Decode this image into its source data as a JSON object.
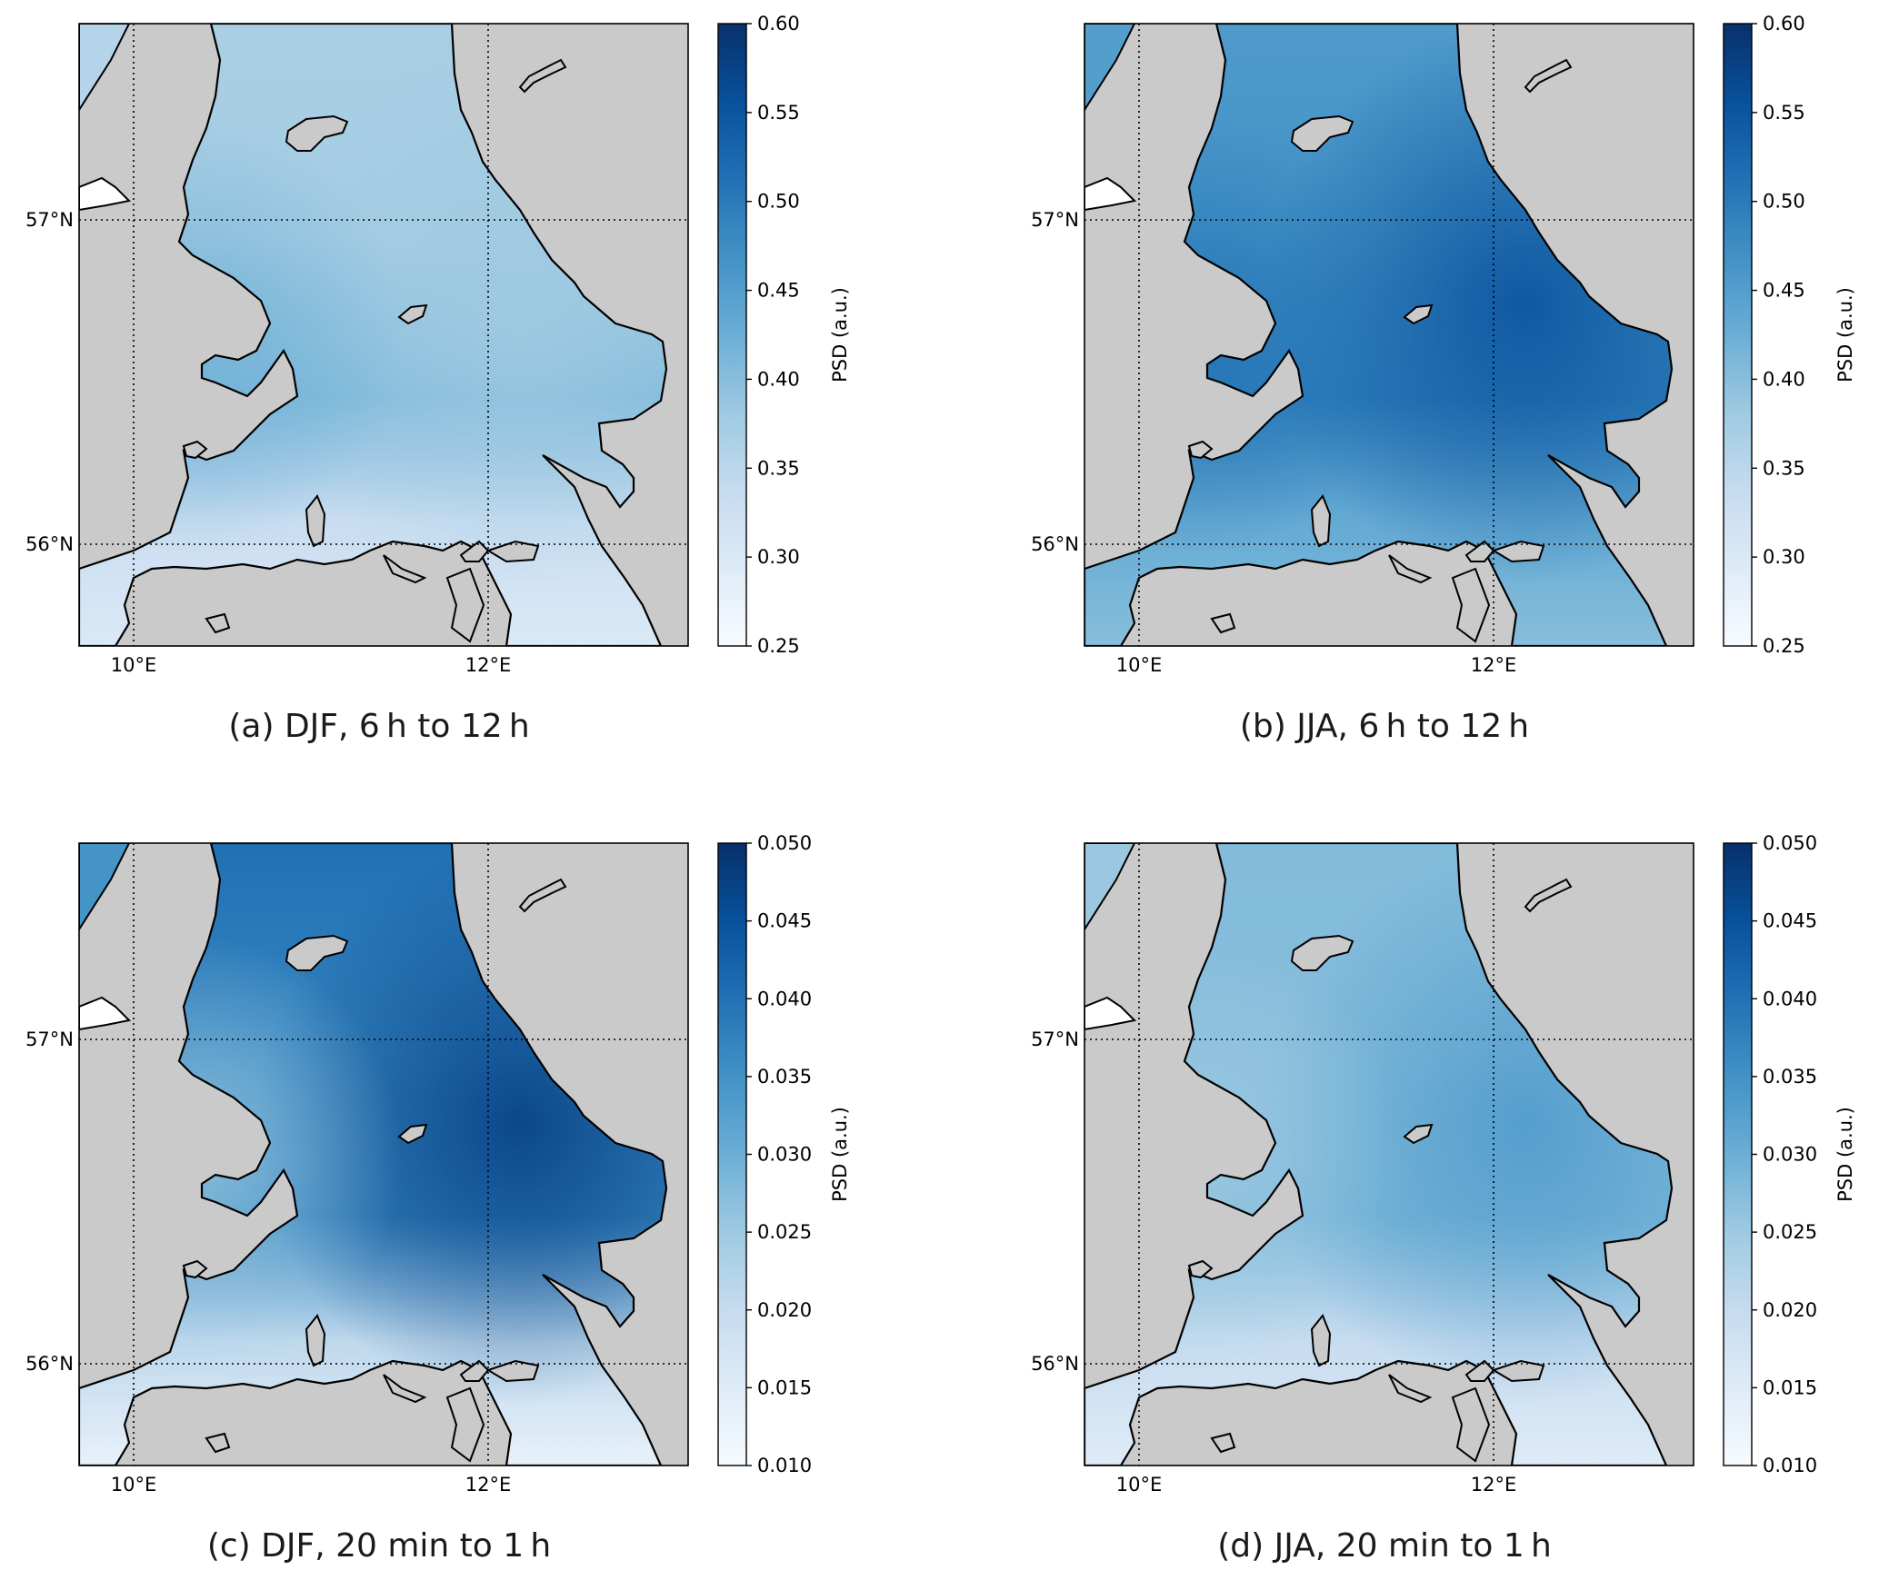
{
  "colors": {
    "land": "#cacaca",
    "coast": "#000000",
    "cmap": [
      "#f7fbff",
      "#deebf7",
      "#c6dbef",
      "#9ecae1",
      "#6baed6",
      "#4292c6",
      "#2171b5",
      "#08519c",
      "#08306b"
    ]
  },
  "axes": {
    "lon_ticks": [
      "10°E",
      "12°E"
    ],
    "lat_ticks": [
      "57°N",
      "56°N"
    ]
  },
  "panels": [
    {
      "id": "a",
      "caption": "(a) DJF, 6 h to 12 h",
      "colorbar": {
        "label": "PSD (a.u.)",
        "min": 0.25,
        "max": 0.6,
        "ticks": [
          "0.25",
          "0.30",
          "0.35",
          "0.40",
          "0.45",
          "0.50",
          "0.55",
          "0.60"
        ]
      },
      "field": {
        "base": 0.38,
        "ne": -0.02,
        "east_coast": 0.0,
        "south": -0.08,
        "west": 0.04,
        "kattegat_south": 0.05
      }
    },
    {
      "id": "b",
      "caption": "(b) JJA, 6 h to 12 h",
      "colorbar": {
        "label": "PSD (a.u.)",
        "min": 0.25,
        "max": 0.6,
        "ticks": [
          "0.25",
          "0.30",
          "0.35",
          "0.40",
          "0.45",
          "0.50",
          "0.55",
          "0.60"
        ]
      },
      "field": {
        "base": 0.48,
        "ne": -0.04,
        "east_coast": 0.07,
        "south": -0.08,
        "west": 0.03,
        "kattegat_south": 0.02
      }
    },
    {
      "id": "c",
      "caption": "(c) DJF, 20 min to 1 h",
      "colorbar": {
        "label": "PSD (a.u.)",
        "min": 0.01,
        "max": 0.05,
        "ticks": [
          "0.010",
          "0.015",
          "0.020",
          "0.025",
          "0.030",
          "0.035",
          "0.040",
          "0.045",
          "0.050"
        ]
      },
      "field": {
        "base": 0.033,
        "ne": 0.012,
        "east_coast": 0.014,
        "south": -0.02,
        "west": -0.008,
        "kattegat_south": 0.006
      }
    },
    {
      "id": "d",
      "caption": "(d) JJA, 20 min to 1 h",
      "colorbar": {
        "label": "PSD (a.u.)",
        "min": 0.01,
        "max": 0.05,
        "ticks": [
          "0.010",
          "0.015",
          "0.020",
          "0.025",
          "0.030",
          "0.035",
          "0.040",
          "0.045",
          "0.050"
        ]
      },
      "field": {
        "base": 0.027,
        "ne": 0.001,
        "east_coast": 0.006,
        "south": -0.012,
        "west": -0.002,
        "kattegat_south": 0.002
      }
    }
  ]
}
